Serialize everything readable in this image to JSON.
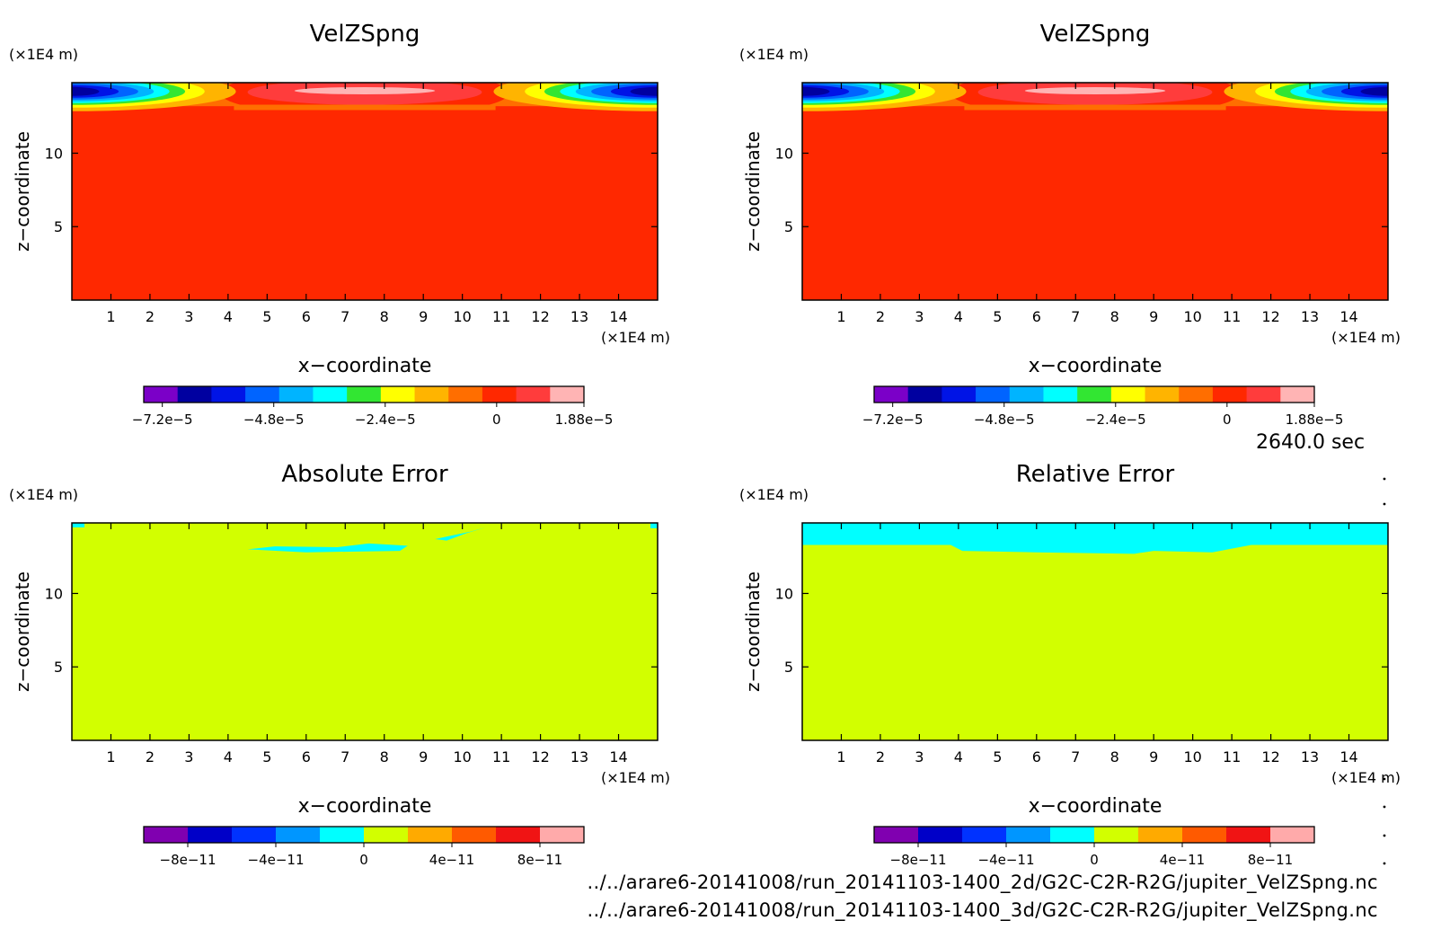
{
  "time_label": "2640.0 sec",
  "footer": {
    "line1": "../../arare6-20141008/run_20141103-1400_2d/G2C-C2R-R2G/jupiter_VelZSpng.nc",
    "line2": "../../arare6-20141008/run_20141103-1400_3d/G2C-C2R-R2G/jupiter_VelZSpng.nc"
  },
  "colors": {
    "velocity_scale": [
      "#7b00c8",
      "#0000a0",
      "#0014e6",
      "#0064ff",
      "#00b4ff",
      "#00ffff",
      "#32e632",
      "#ffff00",
      "#ffb400",
      "#ff6e00",
      "#ff2800",
      "#ff3c3c",
      "#ffb4b4"
    ],
    "error_scale": [
      "#8000b0",
      "#0000c8",
      "#0032ff",
      "#0096ff",
      "#00ffff",
      "#d2ff00",
      "#ffaa00",
      "#ff5a00",
      "#f01414",
      "#ffaaaa"
    ],
    "background_velocity": "#ff2800",
    "background_error": "#d2ff00",
    "error_patch": "#00ffff"
  },
  "chart_data": [
    {
      "type": "heatmap",
      "title": "VelZSpng",
      "xlabel": "x−coordinate",
      "ylabel": "z−coordinate",
      "x_unit": "(×1E4 m)",
      "y_unit": "(×1E4 m)",
      "xlim": [
        0,
        15
      ],
      "ylim": [
        0,
        14.8
      ],
      "x_ticks": [
        1,
        2,
        3,
        4,
        5,
        6,
        7,
        8,
        9,
        10,
        11,
        12,
        13,
        14
      ],
      "y_ticks": [
        5,
        10
      ],
      "colorbar": {
        "tick_labels": [
          "−7.2e−5",
          "−4.8e−5",
          "−2.4e−5",
          "0",
          "1.88e−5"
        ],
        "tick_values": [
          -7.2e-05,
          -4.8e-05,
          -2.4e-05,
          0,
          1.88e-05
        ],
        "range": [
          -7.6e-05,
          1.88e-05
        ]
      }
    },
    {
      "type": "heatmap",
      "title": "VelZSpng",
      "xlabel": "x−coordinate",
      "ylabel": "z−coordinate",
      "x_unit": "(×1E4 m)",
      "y_unit": "(×1E4 m)",
      "xlim": [
        0,
        15
      ],
      "ylim": [
        0,
        14.8
      ],
      "x_ticks": [
        1,
        2,
        3,
        4,
        5,
        6,
        7,
        8,
        9,
        10,
        11,
        12,
        13,
        14
      ],
      "y_ticks": [
        5,
        10
      ],
      "colorbar": {
        "tick_labels": [
          "−7.2e−5",
          "−4.8e−5",
          "−2.4e−5",
          "0",
          "1.88e−5"
        ],
        "tick_values": [
          -7.2e-05,
          -4.8e-05,
          -2.4e-05,
          0,
          1.88e-05
        ],
        "range": [
          -7.6e-05,
          1.88e-05
        ]
      }
    },
    {
      "type": "heatmap",
      "title": "Absolute Error",
      "xlabel": "x−coordinate",
      "ylabel": "z−coordinate",
      "x_unit": "(×1E4 m)",
      "y_unit": "(×1E4 m)",
      "xlim": [
        0,
        15
      ],
      "ylim": [
        0,
        14.8
      ],
      "x_ticks": [
        1,
        2,
        3,
        4,
        5,
        6,
        7,
        8,
        9,
        10,
        11,
        12,
        13,
        14
      ],
      "y_ticks": [
        5,
        10
      ],
      "colorbar": {
        "tick_labels": [
          "−8e−11",
          "−4e−11",
          "0",
          "4e−11",
          "8e−11"
        ],
        "tick_values": [
          -8e-11,
          -4e-11,
          0,
          4e-11,
          8e-11
        ],
        "range": [
          -1e-10,
          1e-10
        ]
      }
    },
    {
      "type": "heatmap",
      "title": "Relative Error",
      "xlabel": "x−coordinate",
      "ylabel": "z−coordinate",
      "x_unit": "(×1E4 m)",
      "y_unit": "(×1E4 m)",
      "xlim": [
        0,
        15
      ],
      "ylim": [
        0,
        14.8
      ],
      "x_ticks": [
        1,
        2,
        3,
        4,
        5,
        6,
        7,
        8,
        9,
        10,
        11,
        12,
        13,
        14
      ],
      "y_ticks": [
        5,
        10
      ],
      "colorbar": {
        "tick_labels": [
          "−8e−11",
          "−4e−11",
          "0",
          "4e−11",
          "8e−11"
        ],
        "tick_values": [
          -8e-11,
          -4e-11,
          0,
          4e-11,
          8e-11
        ],
        "range": [
          -1e-10,
          1e-10
        ]
      }
    }
  ]
}
